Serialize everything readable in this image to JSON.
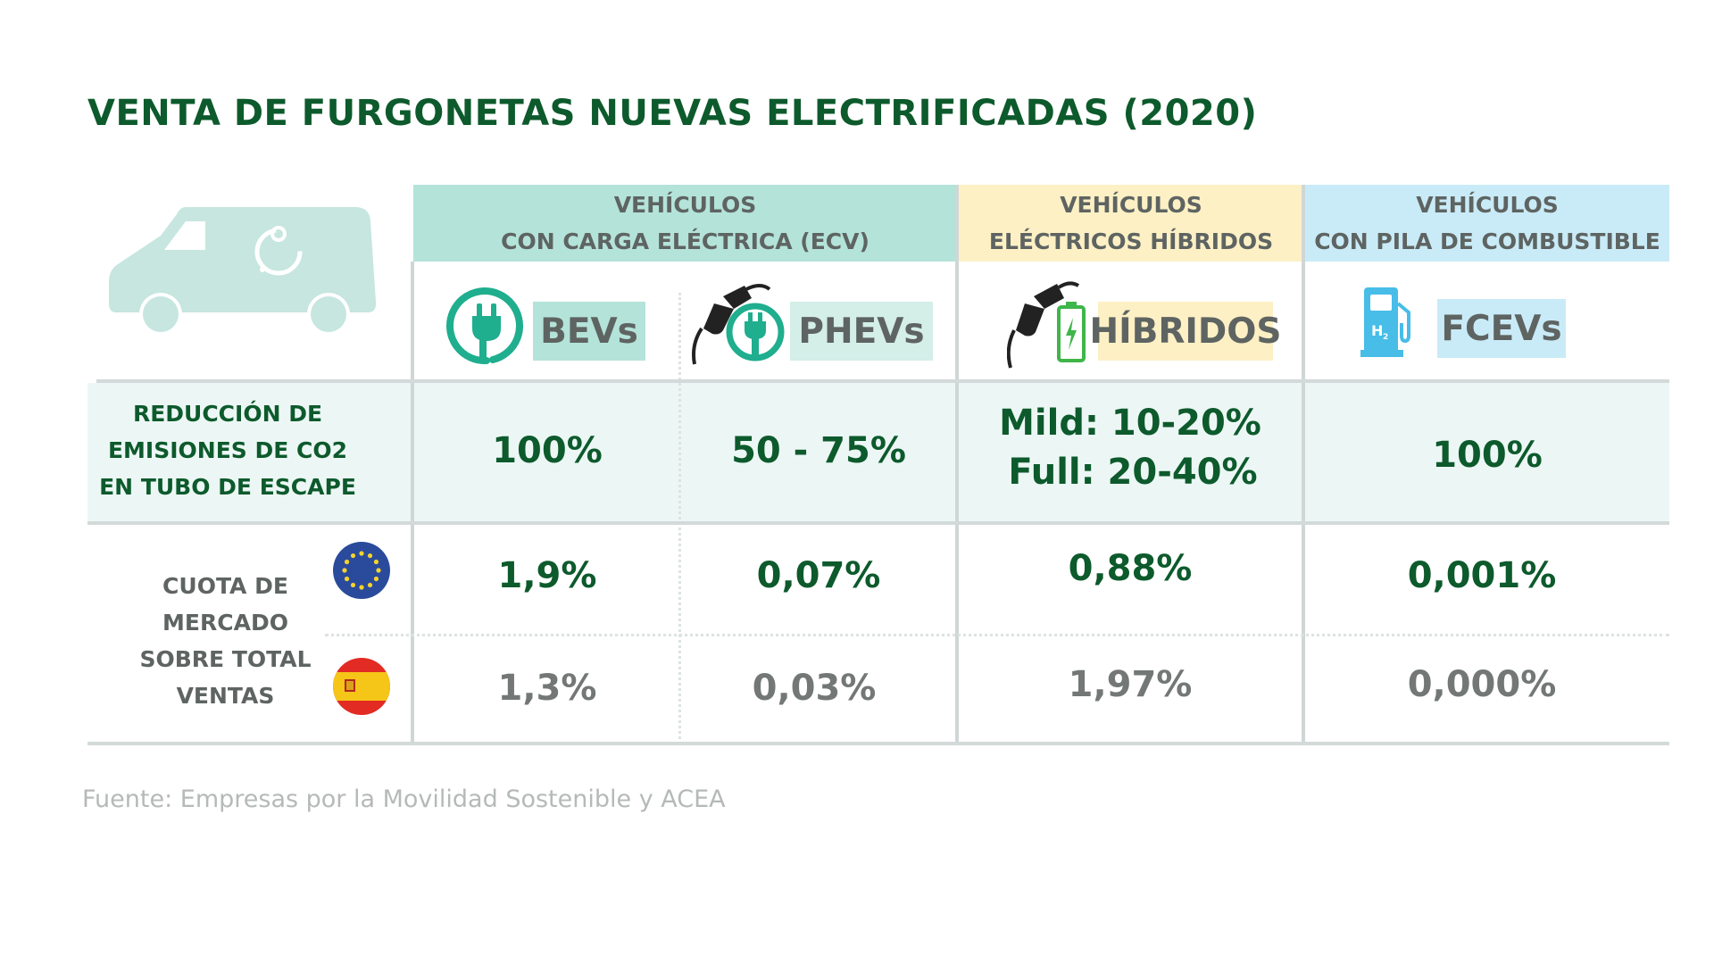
{
  "title": "VENTA DE FURGONETAS NUEVAS ELECTRIFICADAS (2020)",
  "categories": {
    "ecv": {
      "line1": "VEHÍCULOS",
      "line2": "CON CARGA ELÉCTRICA (ECV)",
      "color": "#b4e3d9"
    },
    "hev": {
      "line1": "VEHÍCULOS",
      "line2": "ELÉCTRICOS HÍBRIDOS",
      "color": "#fdf0c4"
    },
    "fcev": {
      "line1": "VEHÍCULOS",
      "line2": "CON PILA DE COMBUSTIBLE",
      "color": "#c9ebf7"
    }
  },
  "types": {
    "bevs": "BEVs",
    "phevs": "PHEVs",
    "hibridos": "HÍBRIDOS",
    "fcevs": "FCEVs"
  },
  "emissions": {
    "label_lines": [
      "REDUCCIÓN DE",
      "EMISIONES DE CO2",
      "EN TUBO DE ESCAPE"
    ],
    "bevs": "100%",
    "phevs": "50 - 75%",
    "hibridos_mild": "Mild: 10-20%",
    "hibridos_full": "Full: 20-40%",
    "fcevs": "100%"
  },
  "market_share": {
    "label_lines": [
      "CUOTA DE",
      "MERCADO",
      "SOBRE TOTAL",
      "VENTAS"
    ],
    "eu": {
      "bevs": "1,9%",
      "phevs": "0,07%",
      "hibridos": "0,88%",
      "fcevs": "0,001%"
    },
    "es": {
      "bevs": "1,3%",
      "phevs": "0,03%",
      "hibridos": "1,97%",
      "fcevs": "0,000%"
    }
  },
  "icons": [
    "van-icon",
    "plug-icon",
    "fuel-nozzle-icon",
    "battery-charging-icon",
    "hydrogen-pump-icon",
    "eu-flag-icon",
    "spain-flag-icon"
  ],
  "colors": {
    "title_green": "#0d5a2c",
    "value_green": "#0d5a2c",
    "value_grey": "#737877",
    "teal": "#1fae8e"
  },
  "source": "Fuente: Empresas por la Movilidad Sostenible y ACEA"
}
